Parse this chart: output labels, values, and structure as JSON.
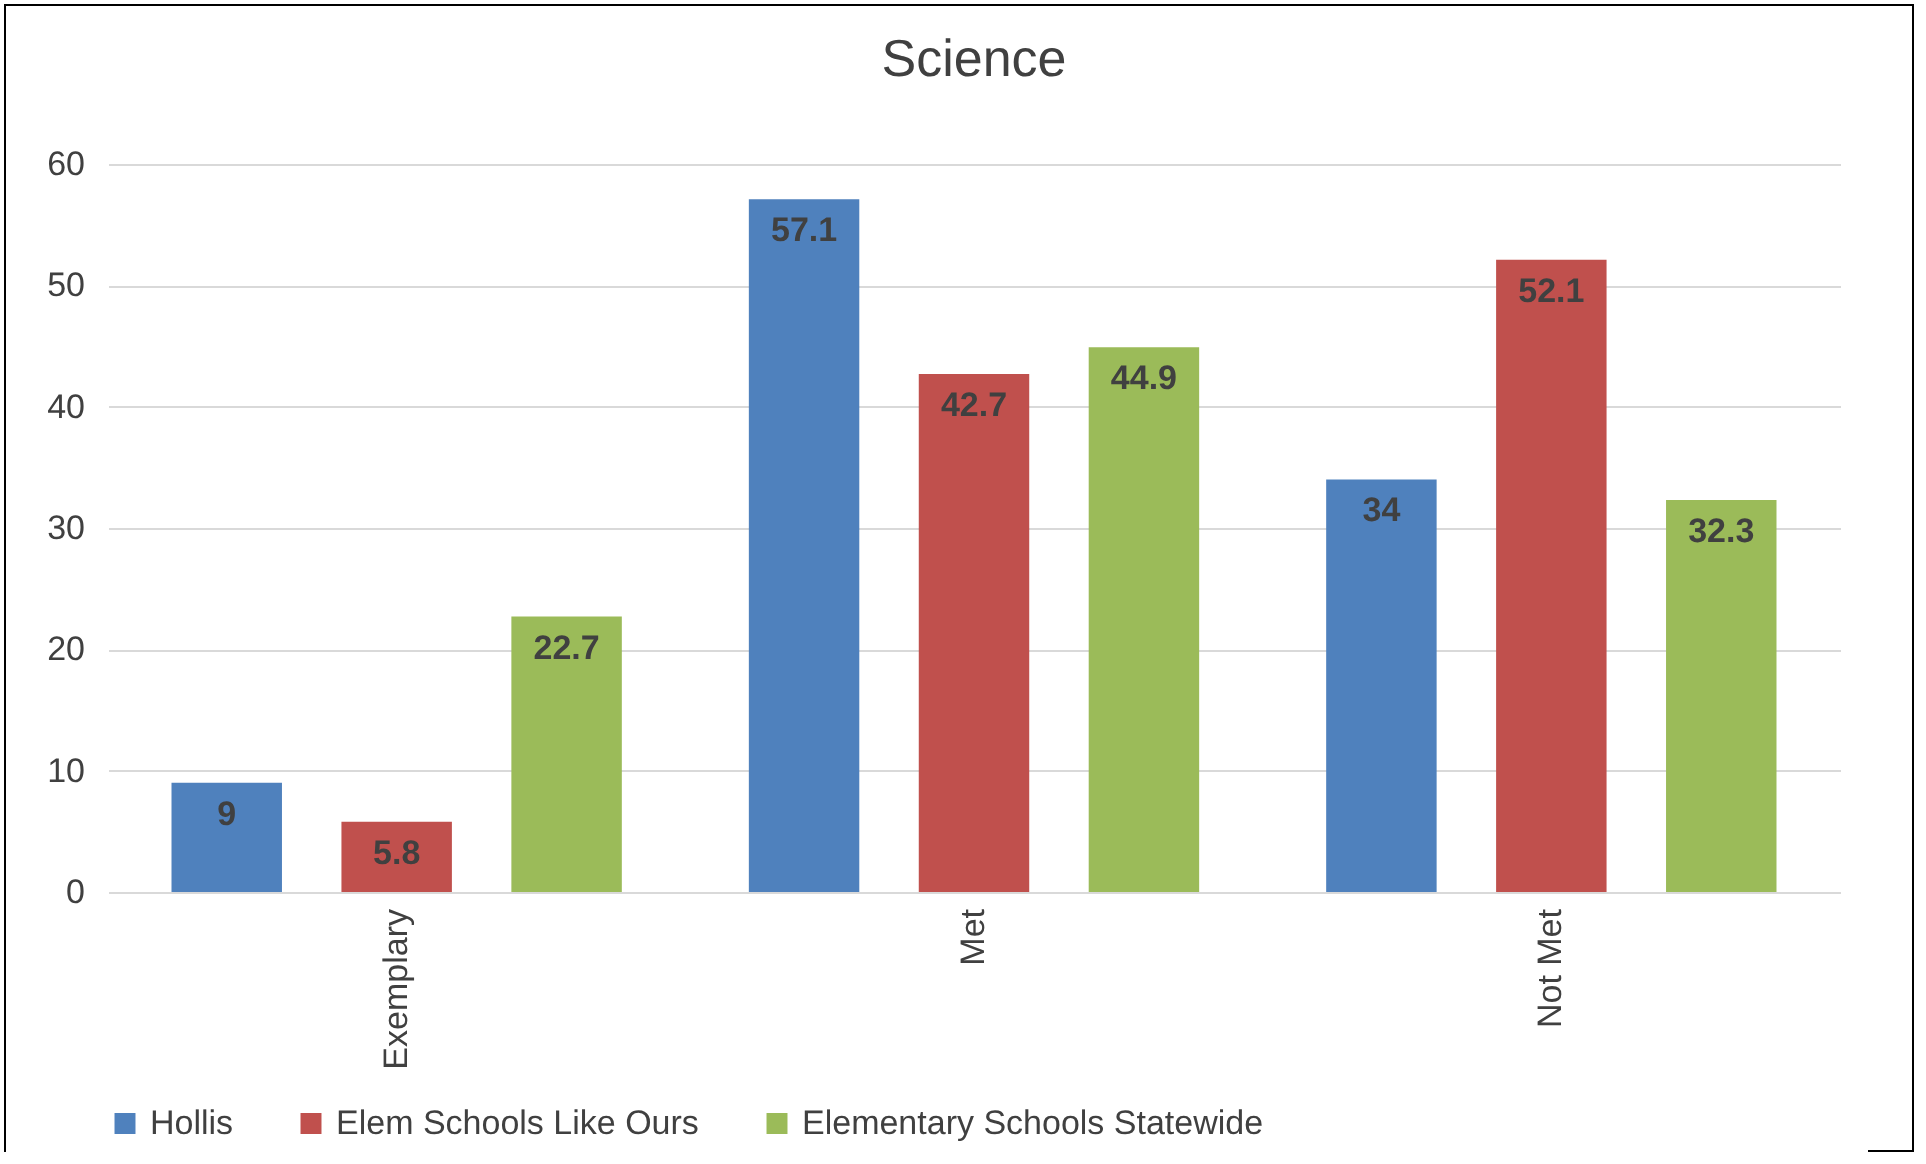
{
  "chart_data": {
    "type": "bar",
    "title": "Science",
    "categories": [
      "Exemplary",
      "Met",
      "Not Met"
    ],
    "series": [
      {
        "name": "Hollis",
        "color": "#4f81bd",
        "values": [
          9,
          57.1,
          34
        ]
      },
      {
        "name": "Elem Schools Like Ours",
        "color": "#c0504d",
        "values": [
          5.8,
          42.7,
          52.1
        ]
      },
      {
        "name": "Elementary Schools Statewide",
        "color": "#9bbb59",
        "values": [
          22.7,
          44.9,
          32.3
        ]
      }
    ],
    "ylim": [
      0,
      60
    ],
    "yticks": [
      0,
      10,
      20,
      30,
      40,
      50,
      60
    ],
    "grid": "y",
    "legend": "bottom",
    "data_labels": true
  }
}
